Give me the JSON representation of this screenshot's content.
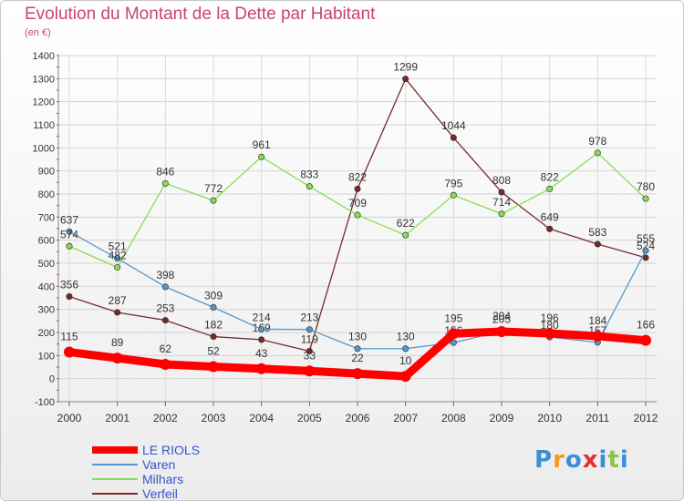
{
  "chart_data": {
    "type": "line",
    "title": "Evolution du Montant de la Dette par Habitant",
    "subtitle": "(en €)",
    "x": [
      "2000",
      "2001",
      "2002",
      "2003",
      "2004",
      "2005",
      "2006",
      "2007",
      "2008",
      "2009",
      "2010",
      "2011",
      "2012"
    ],
    "ylim": [
      -100,
      1400
    ],
    "yticks": [
      -100,
      0,
      100,
      200,
      300,
      400,
      500,
      600,
      700,
      800,
      900,
      1000,
      1100,
      1200,
      1300,
      1400
    ],
    "grid": true,
    "legend_position": "bottom-left",
    "series": [
      {
        "name": "LE RIOLS",
        "color": "#ff0000",
        "values": [
          115,
          89,
          62,
          52,
          43,
          33,
          22,
          10,
          195,
          204,
          196,
          184,
          166
        ]
      },
      {
        "name": "Varen",
        "color": "#5599cc",
        "values": [
          637,
          521,
          398,
          309,
          214,
          213,
          130,
          130,
          156,
          205,
          180,
          157,
          555
        ]
      },
      {
        "name": "Milhars",
        "color": "#88dd55",
        "values": [
          574,
          482,
          846,
          772,
          961,
          833,
          709,
          622,
          795,
          714,
          822,
          978,
          780
        ]
      },
      {
        "name": "Verfeil",
        "color": "#7a2a2a",
        "values": [
          356,
          287,
          253,
          182,
          169,
          119,
          822,
          1299,
          1044,
          808,
          649,
          583,
          524
        ]
      }
    ]
  },
  "brand": {
    "letters": [
      "P",
      "r",
      "o",
      "x",
      "i",
      "t",
      "i"
    ],
    "colors": [
      "#3a8fd6",
      "#f29a1e",
      "#3a8fd6",
      "#e0312f",
      "#3a8fd6",
      "#8bc34a",
      "#3a8fd6"
    ]
  }
}
